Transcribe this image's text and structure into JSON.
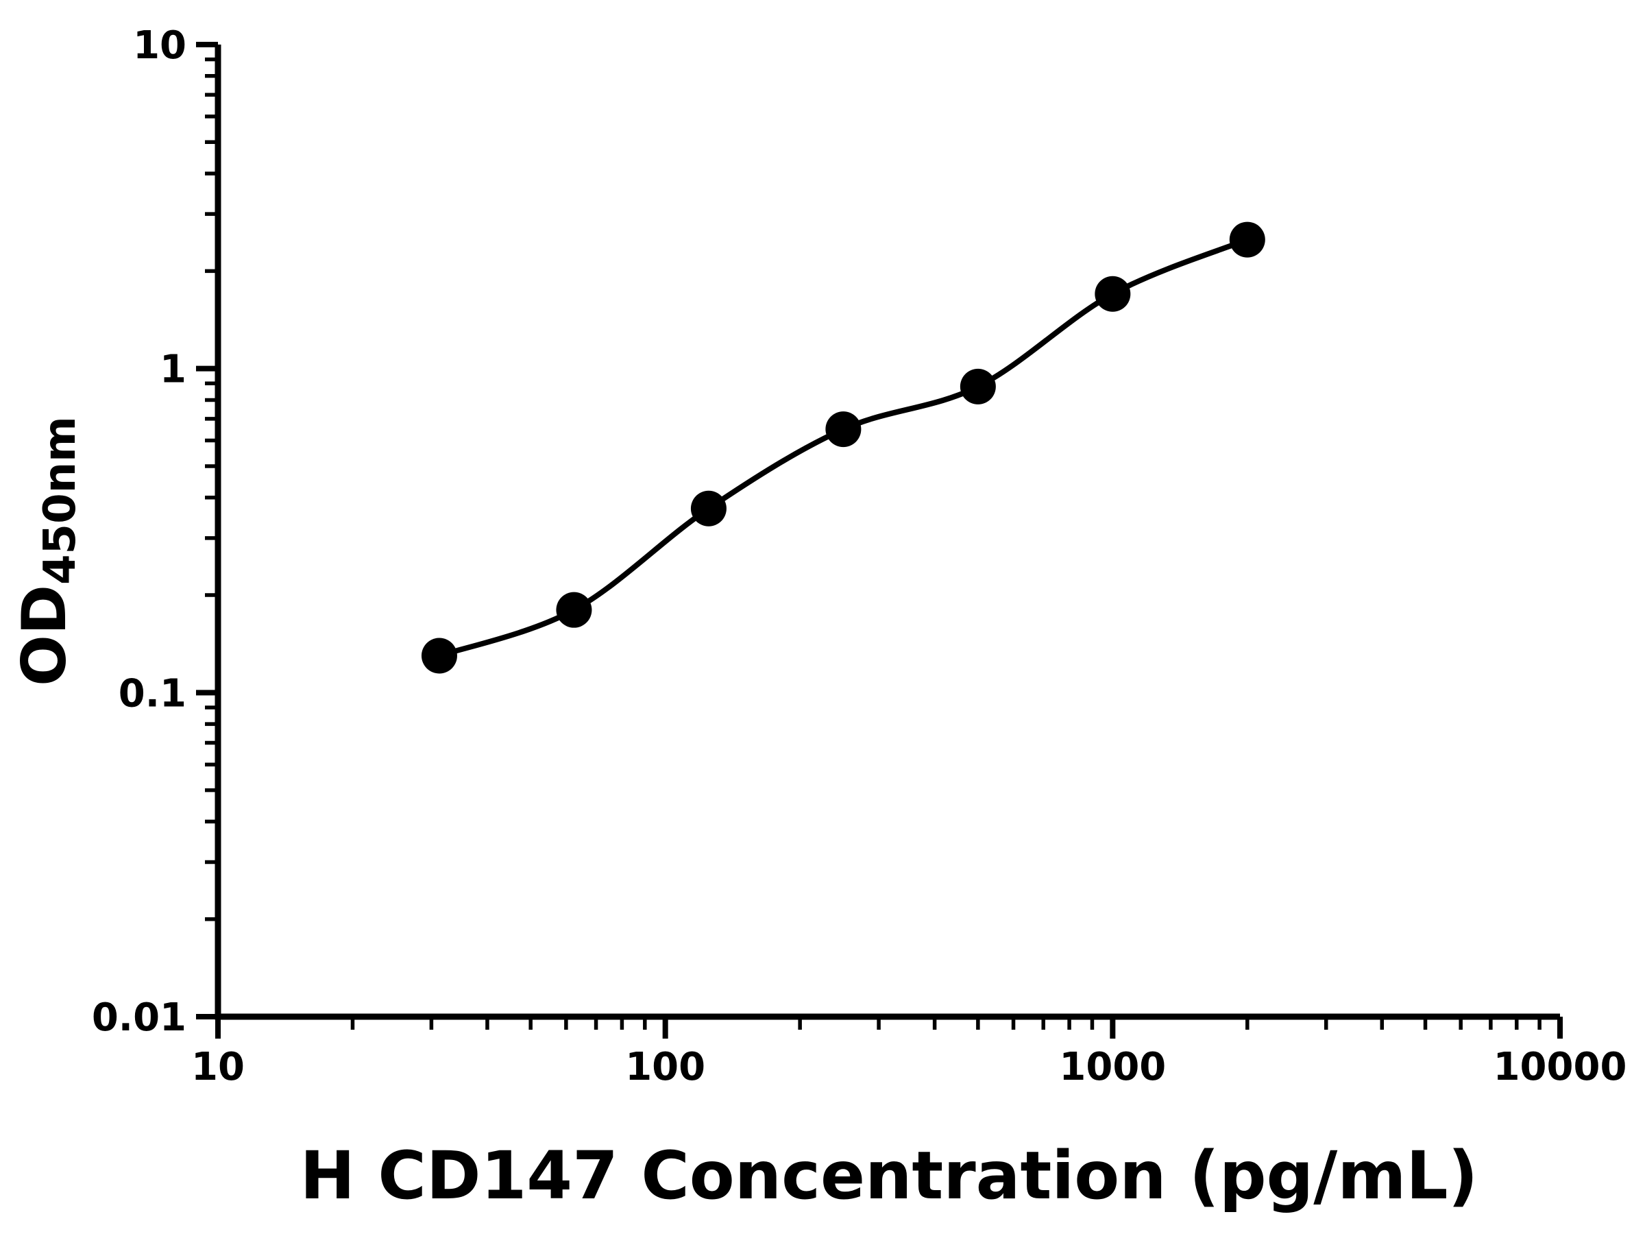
{
  "chart_data": {
    "type": "scatter",
    "title": "",
    "xlabel": "H CD147 Concentration (pg/mL)",
    "ylabel_main": "OD",
    "ylabel_sub": "450nm",
    "x_scale": "log",
    "y_scale": "log",
    "xlim": [
      10,
      10000
    ],
    "ylim": [
      0.01,
      10
    ],
    "x_ticks": [
      10,
      100,
      1000,
      10000
    ],
    "x_tick_labels": [
      "10",
      "100",
      "1000",
      "10000"
    ],
    "y_ticks": [
      0.01,
      0.1,
      1,
      10
    ],
    "y_tick_labels": [
      "0.01",
      "0.1",
      "1",
      "10"
    ],
    "grid": "off",
    "legend": "none",
    "points": [
      {
        "x": 31.25,
        "y": 0.13
      },
      {
        "x": 62.5,
        "y": 0.18
      },
      {
        "x": 125,
        "y": 0.37
      },
      {
        "x": 250,
        "y": 0.65
      },
      {
        "x": 500,
        "y": 0.88
      },
      {
        "x": 1000,
        "y": 1.7
      },
      {
        "x": 2000,
        "y": 2.5
      }
    ],
    "curve_style": "smooth-fit-through-points",
    "marker_color": "#000000",
    "line_color": "#000000",
    "axis_color": "#000000",
    "background": "#ffffff"
  }
}
